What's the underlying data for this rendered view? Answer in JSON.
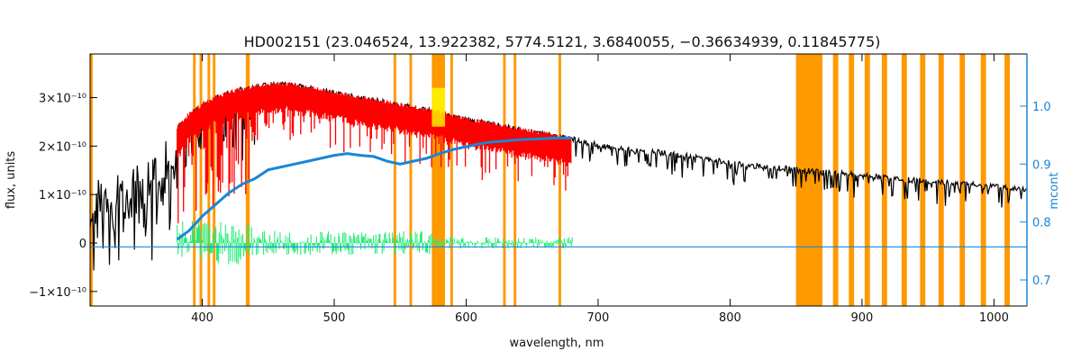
{
  "chart_data": {
    "type": "line",
    "title": "HD002151    (23.046524, 13.922382, 5774.5121, 3.6840055, −0.36634939, 0.11845775)",
    "xlabel": "wavelength, nm",
    "ylabel": "flux, units",
    "ylabel_right": "mcont",
    "xlim": [
      315,
      1025
    ],
    "ylim": [
      -1.3,
      3.9
    ],
    "ylim_right": [
      0.655,
      1.09
    ],
    "y_unit_exponent": -10,
    "grid": false,
    "xticks": [
      400,
      500,
      600,
      700,
      800,
      900,
      1000
    ],
    "yticks": [
      {
        "value": -1,
        "label": "−1×10⁻¹⁰"
      },
      {
        "value": 0,
        "label": "0"
      },
      {
        "value": 1,
        "label": "1×10⁻¹⁰"
      },
      {
        "value": 2,
        "label": "2×10⁻¹⁰"
      },
      {
        "value": 3,
        "label": "3×10⁻¹⁰"
      }
    ],
    "yticks_right": [
      "0.7",
      "0.8",
      "0.9",
      "1.0"
    ],
    "series": [
      {
        "color": "#000000",
        "points": [
          [
            315,
            1.3
          ],
          [
            330,
            1.6
          ],
          [
            345,
            1.7
          ],
          [
            360,
            1.8
          ],
          [
            370,
            2.1
          ],
          [
            380,
            2.4
          ],
          [
            390,
            2.7
          ],
          [
            400,
            2.9
          ],
          [
            410,
            3.05
          ],
          [
            420,
            3.15
          ],
          [
            430,
            3.22
          ],
          [
            440,
            3.28
          ],
          [
            450,
            3.32
          ],
          [
            460,
            3.33
          ],
          [
            470,
            3.3
          ],
          [
            480,
            3.25
          ],
          [
            490,
            3.2
          ],
          [
            500,
            3.15
          ],
          [
            520,
            3.05
          ],
          [
            540,
            2.95
          ],
          [
            560,
            2.85
          ],
          [
            580,
            2.75
          ],
          [
            600,
            2.6
          ],
          [
            620,
            2.5
          ],
          [
            640,
            2.4
          ],
          [
            660,
            2.3
          ],
          [
            680,
            2.2
          ],
          [
            700,
            2.08
          ],
          [
            720,
            2.0
          ],
          [
            740,
            1.95
          ],
          [
            760,
            1.88
          ],
          [
            780,
            1.8
          ],
          [
            800,
            1.72
          ],
          [
            820,
            1.65
          ],
          [
            840,
            1.6
          ],
          [
            860,
            1.55
          ],
          [
            880,
            1.5
          ],
          [
            900,
            1.45
          ],
          [
            920,
            1.4
          ],
          [
            940,
            1.35
          ],
          [
            960,
            1.32
          ],
          [
            980,
            1.28
          ],
          [
            1000,
            1.22
          ],
          [
            1025,
            1.15
          ]
        ]
      },
      {
        "color": "#ff0000",
        "x_range": [
          381,
          680
        ]
      },
      {
        "color": "#1a86d6",
        "axis": "right",
        "points": [
          [
            381,
            0.77
          ],
          [
            390,
            0.785
          ],
          [
            400,
            0.81
          ],
          [
            410,
            0.83
          ],
          [
            420,
            0.85
          ],
          [
            430,
            0.865
          ],
          [
            440,
            0.875
          ],
          [
            450,
            0.89
          ],
          [
            460,
            0.895
          ],
          [
            470,
            0.9
          ],
          [
            480,
            0.905
          ],
          [
            490,
            0.91
          ],
          [
            500,
            0.915
          ],
          [
            510,
            0.918
          ],
          [
            520,
            0.915
          ],
          [
            530,
            0.913
          ],
          [
            540,
            0.905
          ],
          [
            550,
            0.9
          ],
          [
            560,
            0.905
          ],
          [
            570,
            0.91
          ],
          [
            580,
            0.918
          ],
          [
            590,
            0.925
          ],
          [
            600,
            0.93
          ],
          [
            610,
            0.935
          ],
          [
            620,
            0.938
          ],
          [
            630,
            0.94
          ],
          [
            640,
            0.942
          ],
          [
            650,
            0.943
          ],
          [
            660,
            0.944
          ],
          [
            670,
            0.945
          ],
          [
            680,
            0.945
          ]
        ]
      },
      {
        "color": "#1a86d6",
        "axis": "right",
        "points": [
          [
            315,
            0.757
          ],
          [
            1025,
            0.757
          ]
        ]
      },
      {
        "color": "#22ee77",
        "x_range": [
          381,
          681
        ]
      }
    ],
    "masked_regions": [
      {
        "color": "#ff9900",
        "x": [
          [
            315,
            317
          ],
          [
            393,
            395
          ],
          [
            398,
            400
          ],
          [
            404,
            406
          ],
          [
            408,
            410
          ],
          [
            433,
            436
          ],
          [
            545,
            547
          ],
          [
            557,
            559
          ],
          [
            574,
            584
          ],
          [
            588,
            590
          ],
          [
            628,
            630
          ],
          [
            636,
            638
          ],
          [
            670,
            672
          ],
          [
            850,
            870
          ],
          [
            878,
            882
          ],
          [
            890,
            894
          ],
          [
            902,
            906
          ],
          [
            915,
            919
          ],
          [
            930,
            934
          ],
          [
            944,
            948
          ],
          [
            958,
            962
          ],
          [
            974,
            978
          ],
          [
            990,
            994
          ],
          [
            1008,
            1012
          ]
        ]
      }
    ],
    "highlight_regions": [
      {
        "color": "#ffff00",
        "x": [
          [
            574,
            584
          ]
        ]
      }
    ]
  }
}
